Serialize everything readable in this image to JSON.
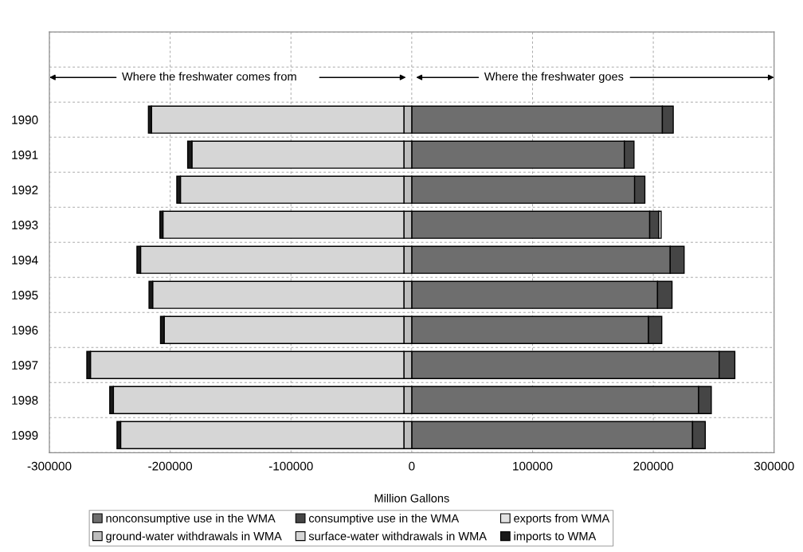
{
  "chart_data": {
    "type": "bar",
    "orientation": "horizontal",
    "stacked": true,
    "categories": [
      null,
      null,
      "1990",
      "1991",
      "1992",
      "1993",
      "1994",
      "1995",
      "1996",
      "1997",
      "1998",
      "1999"
    ],
    "series": [
      {
        "name": "nonconsumptive use in the WMA",
        "color": "#6e6e6e",
        "values": [
          null,
          null,
          207500,
          176000,
          184500,
          197000,
          214000,
          203500,
          196000,
          254500,
          237500,
          232500
        ]
      },
      {
        "name": "consumptive use in the WMA",
        "color": "#454545",
        "values": [
          null,
          null,
          9000,
          8000,
          8500,
          7500,
          11500,
          12000,
          11000,
          13000,
          10500,
          10500
        ]
      },
      {
        "name": "exports from WMA",
        "color": "#e2e2e2",
        "values": [
          null,
          null,
          0,
          0,
          0,
          2000,
          0,
          0,
          0,
          0,
          0,
          0
        ]
      },
      {
        "name": "ground-water withdrawals in WMA",
        "color": "#bdbdbd",
        "values": [
          null,
          null,
          -6500,
          -6500,
          -6500,
          -6500,
          -6500,
          -6500,
          -6500,
          -6500,
          -6500,
          -6500
        ]
      },
      {
        "name": "surface-water withdrawals in WMA",
        "color": "#d6d6d6",
        "values": [
          null,
          null,
          -209000,
          -175500,
          -185000,
          -199500,
          -218000,
          -208000,
          -198500,
          -259500,
          -240500,
          -234500
        ]
      },
      {
        "name": "imports to WMA",
        "color": "#1a1a1a",
        "values": [
          null,
          null,
          -2500,
          -3500,
          -3000,
          -2500,
          -3000,
          -3000,
          -3000,
          -3000,
          -3000,
          -3000
        ]
      }
    ],
    "xlabel": "Million Gallons",
    "xlim": [
      -300000,
      300000
    ],
    "xticks": [
      -300000,
      -200000,
      -100000,
      0,
      100000,
      200000,
      300000
    ],
    "annotations": [
      "Where the freshwater comes from",
      "Where the freshwater goes"
    ],
    "grid": true,
    "legend": "bottom"
  }
}
